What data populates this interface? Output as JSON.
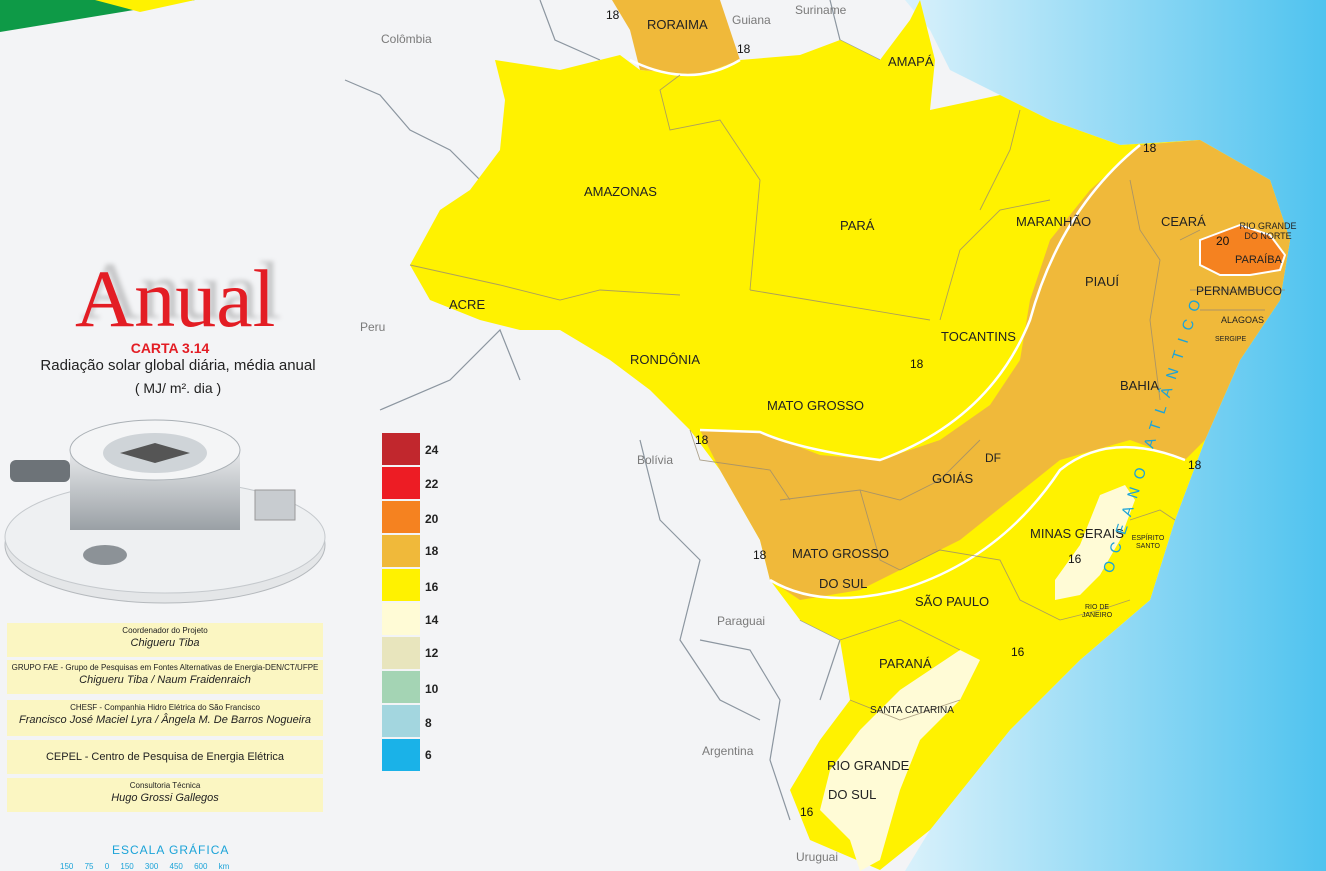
{
  "title": "Anual",
  "carta": "CARTA 3.14",
  "subtitle": "Radiação solar global diária, média anual",
  "units": "( MJ/ m². dia )",
  "legend": [
    {
      "value": "24",
      "color": "#c1272d"
    },
    {
      "value": "22",
      "color": "#ed1c24"
    },
    {
      "value": "20",
      "color": "#f58220"
    },
    {
      "value": "18",
      "color": "#f0b93a"
    },
    {
      "value": "16",
      "color": "#fff200"
    },
    {
      "value": "14",
      "color": "#fffbd6"
    },
    {
      "value": "12",
      "color": "#e8e5bd"
    },
    {
      "value": "10",
      "color": "#a4d4b4"
    },
    {
      "value": "8",
      "color": "#a3d6df"
    },
    {
      "value": "6",
      "color": "#1ab2e8"
    }
  ],
  "credits": [
    {
      "small": "Coordenador do Projeto",
      "name": "Chigueru  Tiba"
    },
    {
      "small": "GRUPO  FAE - Grupo de Pesquisas em Fontes Alternativas de Energia-DEN/CT/UFPE",
      "name": "Chigueru Tiba /   Naum  Fraidenraich"
    },
    {
      "small": "CHESF  -  Companhia Hidro Elétrica do São Francisco",
      "name": "Francisco José Maciel Lyra / Ângela M. De Barros Nogueira"
    },
    {
      "text": "CEPEL - Centro de Pesquisa de Energia Elétrica"
    },
    {
      "small": "Consultoria Técnica",
      "name": "Hugo  Grossi Gallegos"
    }
  ],
  "scale": {
    "title": "ESCALA  GRÁFICA",
    "ticks": "150 75 0 150 300 450 600 km"
  },
  "states": {
    "roraima": "RORAIMA",
    "amapa": "AMAPÁ",
    "amazonas": "AMAZONAS",
    "para": "PARÁ",
    "maranhao": "MARANHÃO",
    "ceara": "CEARÁ",
    "rgn": "RIO GRANDE DO NORTE",
    "paraiba": "PARAÍBA",
    "piaui": "PIAUÍ",
    "pernambuco": "PERNAMBUCO",
    "alagoas": "ALAGOAS",
    "sergipe": "SERGIPE",
    "acre": "ACRE",
    "rondonia": "RONDÔNIA",
    "tocantins": "TOCANTINS",
    "bahia": "BAHIA",
    "mato_grosso": "MATO  GROSSO",
    "df": "DF",
    "goias": "GOIÁS",
    "ms1": "MATO  GROSSO",
    "ms2": "DO SUL",
    "minas": "MINAS  GERAIS",
    "es": "ESPÍRITO SANTO",
    "sao_paulo": "SÃO  PAULO",
    "rj": "RIO DE JANEIRO",
    "parana": "PARANÁ",
    "sc": "SANTA CATARINA",
    "rs1": "RIO GRANDE",
    "rs2": "DO  SUL"
  },
  "countries": {
    "guiana": "Guiana",
    "suriname": "Suriname",
    "colombia": "Colômbia",
    "peru": "Peru",
    "bolivia": "Bolívia",
    "paraguai": "Paraguai",
    "argentina": "Argentina",
    "uruguai": "Uruguai"
  },
  "ocean": "OCEANO  ATLÂNTICO",
  "isolines": {
    "a": "18",
    "b": "18",
    "c": "18",
    "d": "18",
    "e": "18",
    "f": "18",
    "g": "20",
    "h": "16",
    "i": "16",
    "j": "16",
    "k": "18"
  }
}
